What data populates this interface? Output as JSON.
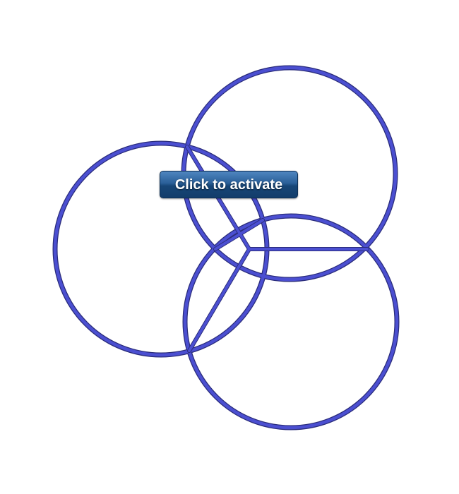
{
  "figure": {
    "ring_color": "#4b4fd1",
    "ring_edge_color": "#2a2c7a",
    "ring_count": 3,
    "strut_count": 3
  },
  "overlay": {
    "activate_label": "Click to activate"
  }
}
